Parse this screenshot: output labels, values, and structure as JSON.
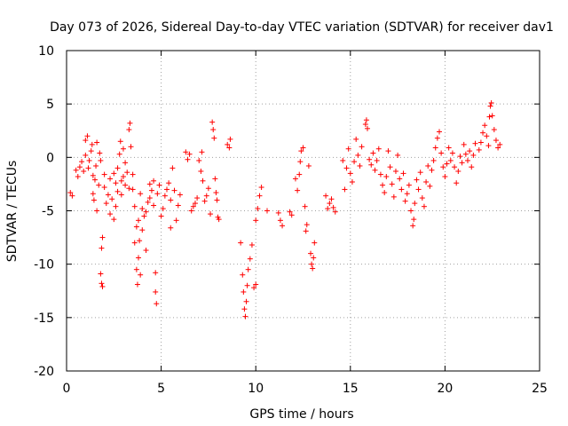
{
  "chart_data": {
    "type": "scatter",
    "title": "Day 073 of 2026, Sidereal Day-to-day VTEC variation (SDTVAR) for receiver dav1",
    "xlabel": "GPS time / hours",
    "ylabel": "SDTVAR / TECUs",
    "xlim": [
      0,
      25
    ],
    "ylim": [
      -20,
      10
    ],
    "xticks": [
      0,
      5,
      10,
      15,
      20,
      25
    ],
    "yticks": [
      -20,
      -15,
      -10,
      -5,
      0,
      5,
      10
    ],
    "grid": true,
    "marker": "+",
    "color": "#ff0000",
    "series": [
      {
        "name": "SDTVAR",
        "points": [
          [
            0.2,
            -3.3
          ],
          [
            0.3,
            -3.6
          ],
          [
            0.5,
            -1.2
          ],
          [
            0.6,
            -1.8
          ],
          [
            0.7,
            -0.9
          ],
          [
            0.8,
            -0.4
          ],
          [
            0.9,
            -1.3
          ],
          [
            1.0,
            0.2
          ],
          [
            1.0,
            1.6
          ],
          [
            1.1,
            2.0
          ],
          [
            1.15,
            -1.0
          ],
          [
            1.2,
            -0.3
          ],
          [
            1.3,
            0.6
          ],
          [
            1.35,
            1.2
          ],
          [
            1.4,
            -1.7
          ],
          [
            1.4,
            -3.4
          ],
          [
            1.45,
            -4.0
          ],
          [
            1.5,
            -2.1
          ],
          [
            1.55,
            -0.8
          ],
          [
            1.6,
            1.4
          ],
          [
            1.6,
            -5.0
          ],
          [
            1.7,
            -2.6
          ],
          [
            1.75,
            0.4
          ],
          [
            1.8,
            -0.3
          ],
          [
            1.8,
            -10.9
          ],
          [
            1.85,
            -11.8
          ],
          [
            1.9,
            -12.1
          ],
          [
            1.85,
            -8.5
          ],
          [
            1.9,
            -7.5
          ],
          [
            2.0,
            -1.6
          ],
          [
            2.0,
            -2.8
          ],
          [
            2.1,
            -4.3
          ],
          [
            2.2,
            -3.5
          ],
          [
            2.3,
            -5.3
          ],
          [
            2.3,
            -2.0
          ],
          [
            2.4,
            -3.9
          ],
          [
            2.5,
            -1.5
          ],
          [
            2.5,
            -5.8
          ],
          [
            2.6,
            -2.4
          ],
          [
            2.6,
            -4.6
          ],
          [
            2.7,
            -1.0
          ],
          [
            2.7,
            -3.2
          ],
          [
            2.8,
            0.3
          ],
          [
            2.85,
            1.5
          ],
          [
            2.9,
            -2.2
          ],
          [
            2.9,
            -3.5
          ],
          [
            3.0,
            -1.8
          ],
          [
            3.0,
            0.8
          ],
          [
            3.1,
            -0.5
          ],
          [
            3.1,
            -2.6
          ],
          [
            3.2,
            -1.4
          ],
          [
            3.3,
            -2.9
          ],
          [
            3.3,
            2.6
          ],
          [
            3.35,
            3.2
          ],
          [
            3.4,
            1.0
          ],
          [
            3.5,
            -1.6
          ],
          [
            3.5,
            -3.0
          ],
          [
            3.6,
            -4.6
          ],
          [
            3.6,
            -8.0
          ],
          [
            3.7,
            -6.5
          ],
          [
            3.7,
            -10.5
          ],
          [
            3.75,
            -11.9
          ],
          [
            3.8,
            -9.4
          ],
          [
            3.8,
            -5.9
          ],
          [
            3.85,
            -7.8
          ],
          [
            3.9,
            -11.0
          ],
          [
            3.9,
            -3.4
          ],
          [
            4.0,
            -6.8
          ],
          [
            4.0,
            -4.8
          ],
          [
            4.1,
            -5.5
          ],
          [
            4.2,
            -8.7
          ],
          [
            4.2,
            -5.1
          ],
          [
            4.3,
            -4.2
          ],
          [
            4.4,
            -3.8
          ],
          [
            4.4,
            -2.5
          ],
          [
            4.5,
            -3.1
          ],
          [
            4.6,
            -2.2
          ],
          [
            4.6,
            -4.5
          ],
          [
            4.7,
            -10.8
          ],
          [
            4.7,
            -12.6
          ],
          [
            4.75,
            -13.7
          ],
          [
            4.8,
            -3.4
          ],
          [
            4.9,
            -2.6
          ],
          [
            5.0,
            -5.5
          ],
          [
            5.1,
            -4.8
          ],
          [
            5.2,
            -3.6
          ],
          [
            5.3,
            -3.0
          ],
          [
            5.4,
            -2.4
          ],
          [
            5.5,
            -6.6
          ],
          [
            5.5,
            -4.0
          ],
          [
            5.6,
            -1.0
          ],
          [
            5.7,
            -3.1
          ],
          [
            5.8,
            -5.9
          ],
          [
            5.9,
            -4.5
          ],
          [
            6.0,
            -3.5
          ],
          [
            6.3,
            0.5
          ],
          [
            6.4,
            -0.2
          ],
          [
            6.5,
            0.3
          ],
          [
            6.6,
            -5.0
          ],
          [
            6.7,
            -4.6
          ],
          [
            6.8,
            -4.3
          ],
          [
            6.9,
            -3.8
          ],
          [
            7.0,
            -0.3
          ],
          [
            7.1,
            -1.3
          ],
          [
            7.15,
            0.5
          ],
          [
            7.2,
            -2.2
          ],
          [
            7.3,
            -4.1
          ],
          [
            7.4,
            -3.6
          ],
          [
            7.5,
            -2.9
          ],
          [
            7.6,
            -5.3
          ],
          [
            7.7,
            3.3
          ],
          [
            7.75,
            2.6
          ],
          [
            7.8,
            1.8
          ],
          [
            7.85,
            -2.0
          ],
          [
            7.9,
            -3.3
          ],
          [
            7.95,
            -4.0
          ],
          [
            8.0,
            -5.6
          ],
          [
            8.05,
            -5.8
          ],
          [
            8.5,
            1.2
          ],
          [
            8.6,
            0.9
          ],
          [
            8.65,
            1.7
          ],
          [
            9.2,
            -8.0
          ],
          [
            9.3,
            -11.0
          ],
          [
            9.35,
            -12.6
          ],
          [
            9.4,
            -14.2
          ],
          [
            9.45,
            -14.9
          ],
          [
            9.5,
            -13.5
          ],
          [
            9.55,
            -12.0
          ],
          [
            9.6,
            -10.5
          ],
          [
            9.7,
            -9.5
          ],
          [
            9.8,
            -8.2
          ],
          [
            9.9,
            -12.2
          ],
          [
            10.0,
            -11.9
          ],
          [
            10.0,
            -5.9
          ],
          [
            10.1,
            -4.8
          ],
          [
            10.2,
            -3.6
          ],
          [
            10.3,
            -2.8
          ],
          [
            10.6,
            -5.0
          ],
          [
            11.2,
            -5.2
          ],
          [
            11.3,
            -5.9
          ],
          [
            11.4,
            -6.4
          ],
          [
            11.8,
            -5.1
          ],
          [
            11.9,
            -5.4
          ],
          [
            12.1,
            -2.0
          ],
          [
            12.2,
            -3.1
          ],
          [
            12.3,
            -1.6
          ],
          [
            12.35,
            -0.4
          ],
          [
            12.4,
            0.6
          ],
          [
            12.5,
            0.9
          ],
          [
            12.6,
            -4.6
          ],
          [
            12.65,
            -6.9
          ],
          [
            12.7,
            -6.3
          ],
          [
            12.8,
            -0.8
          ],
          [
            12.9,
            -9.0
          ],
          [
            12.95,
            -10.0
          ],
          [
            13.0,
            -10.4
          ],
          [
            13.05,
            -9.4
          ],
          [
            13.1,
            -8.0
          ],
          [
            13.7,
            -3.6
          ],
          [
            13.8,
            -4.8
          ],
          [
            13.9,
            -4.3
          ],
          [
            14.0,
            -3.9
          ],
          [
            14.1,
            -4.7
          ],
          [
            14.2,
            -5.1
          ],
          [
            14.6,
            -0.3
          ],
          [
            14.7,
            -3.0
          ],
          [
            14.8,
            -1.0
          ],
          [
            14.9,
            0.8
          ],
          [
            15.0,
            -1.5
          ],
          [
            15.1,
            -2.3
          ],
          [
            15.2,
            -0.4
          ],
          [
            15.3,
            1.7
          ],
          [
            15.4,
            0.2
          ],
          [
            15.5,
            -0.8
          ],
          [
            15.6,
            1.0
          ],
          [
            15.8,
            3.1
          ],
          [
            15.85,
            3.5
          ],
          [
            15.9,
            2.7
          ],
          [
            16.0,
            -0.2
          ],
          [
            16.1,
            -0.7
          ],
          [
            16.2,
            0.4
          ],
          [
            16.3,
            -1.2
          ],
          [
            16.4,
            -0.3
          ],
          [
            16.5,
            0.8
          ],
          [
            16.6,
            -1.6
          ],
          [
            16.7,
            -2.6
          ],
          [
            16.8,
            -3.3
          ],
          [
            16.9,
            -1.8
          ],
          [
            17.0,
            0.6
          ],
          [
            17.1,
            -0.9
          ],
          [
            17.2,
            -2.5
          ],
          [
            17.3,
            -3.7
          ],
          [
            17.4,
            -1.3
          ],
          [
            17.5,
            0.2
          ],
          [
            17.6,
            -2.0
          ],
          [
            17.7,
            -3.0
          ],
          [
            17.8,
            -1.5
          ],
          [
            17.9,
            -4.1
          ],
          [
            18.0,
            -3.4
          ],
          [
            18.1,
            -2.6
          ],
          [
            18.2,
            -5.0
          ],
          [
            18.3,
            -6.4
          ],
          [
            18.35,
            -5.8
          ],
          [
            18.4,
            -4.3
          ],
          [
            18.5,
            -2.1
          ],
          [
            18.6,
            -3.0
          ],
          [
            18.7,
            -1.4
          ],
          [
            18.8,
            -3.8
          ],
          [
            18.9,
            -4.6
          ],
          [
            19.0,
            -2.3
          ],
          [
            19.1,
            -0.8
          ],
          [
            19.2,
            -2.7
          ],
          [
            19.3,
            -1.2
          ],
          [
            19.4,
            -0.3
          ],
          [
            19.5,
            0.9
          ],
          [
            19.6,
            1.8
          ],
          [
            19.7,
            2.4
          ],
          [
            19.8,
            0.4
          ],
          [
            19.9,
            -0.9
          ],
          [
            20.0,
            -1.8
          ],
          [
            20.1,
            -0.6
          ],
          [
            20.2,
            0.9
          ],
          [
            20.3,
            -0.3
          ],
          [
            20.4,
            0.4
          ],
          [
            20.5,
            -0.9
          ],
          [
            20.6,
            -2.4
          ],
          [
            20.7,
            -1.3
          ],
          [
            20.8,
            0.1
          ],
          [
            20.9,
            -0.5
          ],
          [
            21.0,
            1.2
          ],
          [
            21.1,
            0.3
          ],
          [
            21.2,
            -0.3
          ],
          [
            21.3,
            0.6
          ],
          [
            21.4,
            -0.9
          ],
          [
            21.5,
            0.2
          ],
          [
            21.6,
            1.3
          ],
          [
            21.8,
            0.7
          ],
          [
            21.9,
            1.4
          ],
          [
            22.0,
            2.3
          ],
          [
            22.1,
            3.0
          ],
          [
            22.2,
            2.0
          ],
          [
            22.3,
            1.1
          ],
          [
            22.35,
            3.8
          ],
          [
            22.4,
            4.8
          ],
          [
            22.45,
            5.1
          ],
          [
            22.5,
            3.9
          ],
          [
            22.6,
            2.6
          ],
          [
            22.7,
            1.6
          ],
          [
            22.8,
            0.9
          ],
          [
            22.9,
            1.2
          ]
        ]
      }
    ]
  }
}
